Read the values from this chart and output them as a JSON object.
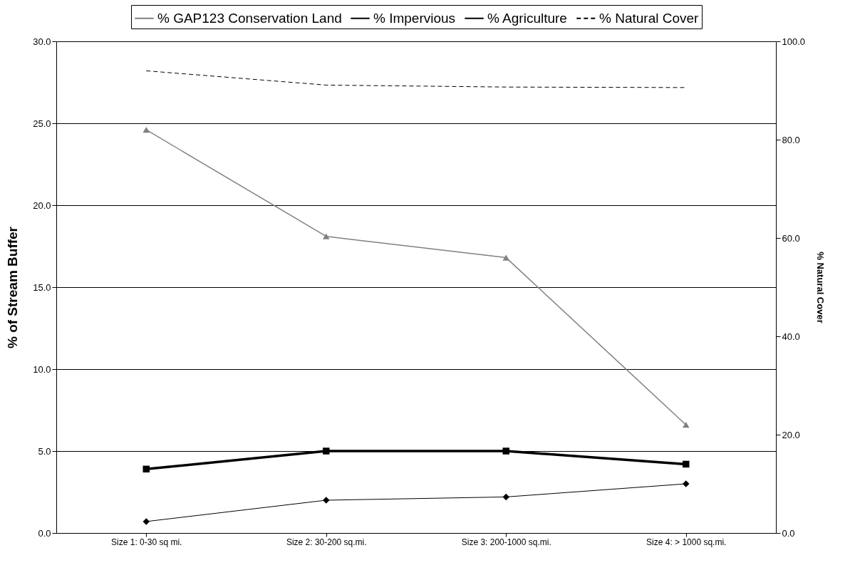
{
  "chart_data": {
    "type": "line",
    "ylabel": "% of Stream Buffer",
    "y2label": "% Natural Cover",
    "categories": [
      "Size 1: 0-30 sq mi.",
      "Size 2: 30-200 sq.mi.",
      "Size 3: 200-1000 sq.mi.",
      "Size 4: > 1000 sq.mi."
    ],
    "series": [
      {
        "name": "% GAP123 Conservation Land",
        "color": "#808080",
        "marker": "triangle",
        "line_style": "solid",
        "values": [
          24.6,
          18.1,
          16.8,
          6.6
        ]
      },
      {
        "name": "% Impervious",
        "color": "#000000",
        "marker": "diamond",
        "line_style": "solid",
        "values": [
          0.7,
          2.0,
          2.2,
          3.0
        ]
      },
      {
        "name": "% Agriculture",
        "color": "#000000",
        "marker": "square",
        "line_style": "solid",
        "values": [
          3.9,
          5.0,
          5.0,
          4.2
        ]
      },
      {
        "name": "% Natural Cover",
        "color": "#000000",
        "marker": "none",
        "line_style": "dashed",
        "axis": "y2",
        "values": [
          94.0,
          91.1,
          90.7,
          90.6
        ]
      }
    ],
    "ylim": [
      0,
      30
    ],
    "yticks": [
      {
        "value": 0,
        "label": "0.0"
      },
      {
        "value": 5,
        "label": "5.0"
      },
      {
        "value": 10,
        "label": "10.0"
      },
      {
        "value": 15,
        "label": "15.0"
      },
      {
        "value": 20,
        "label": "20.0"
      },
      {
        "value": 25,
        "label": "25.0"
      },
      {
        "value": 30,
        "label": "30.0"
      }
    ],
    "y2lim": [
      0,
      100
    ],
    "y2ticks": [
      {
        "value": 0,
        "label": "0.0"
      },
      {
        "value": 20,
        "label": "20.0"
      },
      {
        "value": 40,
        "label": "40.0"
      },
      {
        "value": 60,
        "label": "60.0"
      },
      {
        "value": 80,
        "label": "80.0"
      },
      {
        "value": 100,
        "label": "100.0"
      }
    ],
    "grid": "y",
    "legend": "top"
  }
}
